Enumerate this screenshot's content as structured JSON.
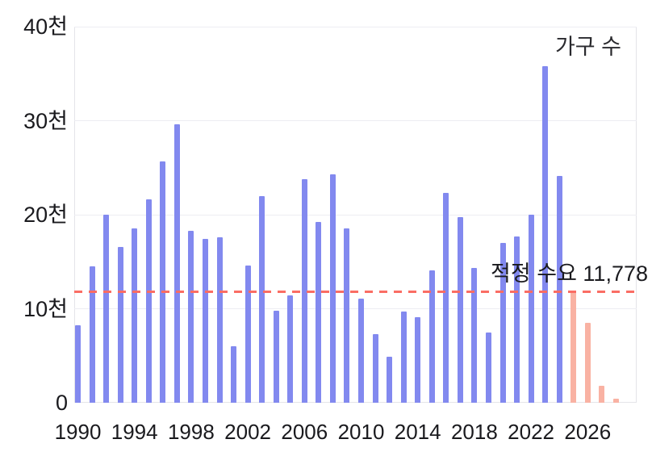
{
  "chart": {
    "series_label": "가구 수",
    "annotation_label": "적정 수요 11,778"
  },
  "chart_data": {
    "type": "bar",
    "title": "",
    "series_label": "가구 수",
    "unit": "천 (thousands of households)",
    "x": [
      1990,
      1991,
      1992,
      1993,
      1994,
      1995,
      1996,
      1997,
      1998,
      1999,
      2000,
      2001,
      2002,
      2003,
      2004,
      2005,
      2006,
      2007,
      2008,
      2009,
      2010,
      2011,
      2012,
      2013,
      2014,
      2015,
      2016,
      2017,
      2018,
      2019,
      2020,
      2021,
      2022,
      2023,
      2024,
      2025,
      2026,
      2027,
      2028
    ],
    "values": [
      8.2,
      14.5,
      20.0,
      16.6,
      18.5,
      21.6,
      25.7,
      29.6,
      18.3,
      17.4,
      17.6,
      6.0,
      14.6,
      22.0,
      9.8,
      11.4,
      23.8,
      19.2,
      24.3,
      18.5,
      11.1,
      7.3,
      4.9,
      9.7,
      9.1,
      14.1,
      22.3,
      19.7,
      14.3,
      7.5,
      17.0,
      17.7,
      20.0,
      35.8,
      24.1,
      11.9,
      8.5,
      1.8,
      0.4
    ],
    "forecast_years": [
      2025,
      2026,
      2027,
      2028
    ],
    "reference_line": {
      "label": "적정 수요 11,778",
      "value": 11.778
    },
    "y_ticks": [
      {
        "value": 40,
        "label": "40천"
      },
      {
        "value": 30,
        "label": "30천"
      },
      {
        "value": 20,
        "label": "20천"
      },
      {
        "value": 10,
        "label": "10천"
      },
      {
        "value": 0,
        "label": "0"
      }
    ],
    "x_ticks": [
      {
        "year": 1990,
        "label": "1990"
      },
      {
        "year": 1994,
        "label": "1994"
      },
      {
        "year": 1998,
        "label": "1998"
      },
      {
        "year": 2002,
        "label": "2002"
      },
      {
        "year": 2006,
        "label": "2006"
      },
      {
        "year": 2010,
        "label": "2010"
      },
      {
        "year": 2014,
        "label": "2014"
      },
      {
        "year": 2018,
        "label": "2018"
      },
      {
        "year": 2022,
        "label": "2022"
      },
      {
        "year": 2026,
        "label": "2026"
      }
    ],
    "ylim": [
      0,
      40
    ],
    "grid": true,
    "legend_position": "top-right-inside",
    "colors": {
      "bar": "#8289ef",
      "forecast_bar": "#f9b2a3",
      "threshold_line": "#fa6d64",
      "grid": "#ededf2",
      "axis_border": "#e4e4e9",
      "text": "#1a1a1e"
    }
  }
}
